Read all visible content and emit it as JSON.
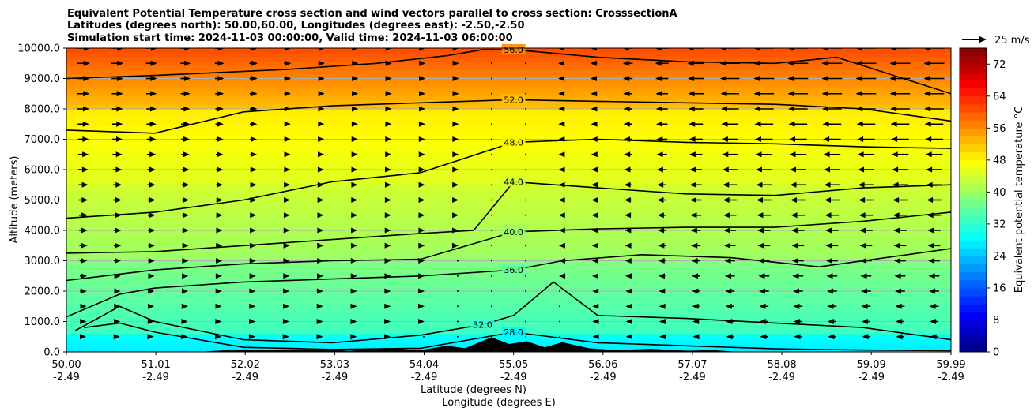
{
  "chart_data": {
    "type": "heatmap",
    "title_lines": [
      "Equivalent Potential Temperature cross section and wind vectors parallel to cross section: CrosssectionA",
      "Latitudes (degrees north): 50.00,60.00, Longitudes (degrees east): -2.50,-2.50",
      "Simulation start time: 2024-11-03 00:00:00, Valid time: 2024-11-03 06:00:00"
    ],
    "ylabel": "Altitude (meters)",
    "xlabel_lines": [
      "Latitude (degrees N)",
      "Longitude (degrees E)"
    ],
    "ylim": [
      0,
      10000
    ],
    "yticks": [
      0,
      1000,
      2000,
      3000,
      4000,
      5000,
      6000,
      7000,
      8000,
      9000,
      10000
    ],
    "ytick_labels": [
      "0.0",
      "1000.0",
      "2000.0",
      "3000.0",
      "4000.0",
      "5000.0",
      "6000.0",
      "7000.0",
      "8000.0",
      "9000.0",
      "10000.0"
    ],
    "xlim": [
      50.0,
      59.99
    ],
    "xticks": [
      {
        "lat": "50.00",
        "lon": "-2.49",
        "v": 50.0
      },
      {
        "lat": "51.01",
        "lon": "-2.49",
        "v": 51.01
      },
      {
        "lat": "52.02",
        "lon": "-2.49",
        "v": 52.02
      },
      {
        "lat": "53.03",
        "lon": "-2.49",
        "v": 53.03
      },
      {
        "lat": "54.04",
        "lon": "-2.49",
        "v": 54.04
      },
      {
        "lat": "55.05",
        "lon": "-2.49",
        "v": 55.05
      },
      {
        "lat": "56.06",
        "lon": "-2.49",
        "v": 56.06
      },
      {
        "lat": "57.07",
        "lon": "-2.49",
        "v": 57.07
      },
      {
        "lat": "58.08",
        "lon": "-2.49",
        "v": 58.08
      },
      {
        "lat": "59.09",
        "lon": "-2.49",
        "v": 59.09
      },
      {
        "lat": "59.99",
        "lon": "-2.49",
        "v": 59.99
      }
    ],
    "colorbar": {
      "label": "Equivalent potential temperature $^\\circ$C",
      "label_display": "Equivalent potential temperature °C",
      "min": 0,
      "max": 76,
      "step": 2,
      "ticks": [
        0,
        8,
        16,
        24,
        32,
        40,
        48,
        56,
        64,
        72
      ],
      "colormap": "jet"
    },
    "quiver_key": {
      "label": "25 m/s",
      "speed": 25
    },
    "filled_levels": [
      {
        "y": [
          0,
          600
        ],
        "theta_start": 27,
        "theta_end": 29
      },
      {
        "y": [
          600,
          3000
        ],
        "theta_start": 33,
        "theta_end": 38
      },
      {
        "y": [
          3000,
          5500
        ],
        "theta_start": 40,
        "theta_end": 44
      },
      {
        "y": [
          5500,
          8000
        ],
        "theta_start": 45,
        "theta_end": 49
      },
      {
        "y": [
          8000,
          10000
        ],
        "theta_start": 52,
        "theta_end": 61
      }
    ],
    "contours": [
      {
        "level": 56,
        "label": "56.0",
        "points": [
          [
            50.0,
            9000
          ],
          [
            51.0,
            9100
          ],
          [
            52.5,
            9300
          ],
          [
            53.5,
            9500
          ],
          [
            54.3,
            9750
          ],
          [
            54.7,
            9950
          ],
          [
            55.05,
            9950
          ],
          [
            56.0,
            9700
          ],
          [
            57.0,
            9550
          ],
          [
            58.0,
            9500
          ],
          [
            58.7,
            9700
          ],
          [
            59.99,
            8500
          ]
        ]
      },
      {
        "level": 52,
        "label": "52.0",
        "points": [
          [
            50.0,
            7300
          ],
          [
            51.0,
            7200
          ],
          [
            52.0,
            7900
          ],
          [
            53.0,
            8100
          ],
          [
            54.0,
            8200
          ],
          [
            55.05,
            8300
          ],
          [
            56.0,
            8250
          ],
          [
            57.0,
            8200
          ],
          [
            58.0,
            8150
          ],
          [
            59.0,
            8000
          ],
          [
            59.99,
            7600
          ]
        ]
      },
      {
        "level": 48,
        "label": "48.0",
        "points": [
          [
            50.0,
            4400
          ],
          [
            51.0,
            4600
          ],
          [
            52.0,
            5000
          ],
          [
            53.0,
            5600
          ],
          [
            54.0,
            5900
          ],
          [
            55.05,
            6900
          ],
          [
            56.0,
            7000
          ],
          [
            57.0,
            6900
          ],
          [
            58.0,
            6850
          ],
          [
            59.0,
            6750
          ],
          [
            59.99,
            6700
          ]
        ]
      },
      {
        "level": 44,
        "label": "44.0",
        "points": [
          [
            50.0,
            3250
          ],
          [
            51.0,
            3300
          ],
          [
            52.0,
            3500
          ],
          [
            53.0,
            3700
          ],
          [
            54.0,
            3900
          ],
          [
            54.6,
            4000
          ],
          [
            55.05,
            5600
          ],
          [
            56.0,
            5400
          ],
          [
            57.0,
            5200
          ],
          [
            58.0,
            5150
          ],
          [
            59.0,
            5400
          ],
          [
            59.99,
            5500
          ]
        ]
      },
      {
        "level": 40,
        "label": "40.0",
        "points": [
          [
            50.0,
            2350
          ],
          [
            51.0,
            2700
          ],
          [
            52.0,
            2900
          ],
          [
            53.0,
            3000
          ],
          [
            54.0,
            3050
          ],
          [
            55.05,
            3950
          ],
          [
            56.0,
            4050
          ],
          [
            57.0,
            4100
          ],
          [
            58.0,
            4100
          ],
          [
            59.0,
            4300
          ],
          [
            59.99,
            4600
          ]
        ]
      },
      {
        "level": 36,
        "label": "36.0",
        "points": [
          [
            50.0,
            1150
          ],
          [
            50.6,
            1900
          ],
          [
            51.0,
            2100
          ],
          [
            52.0,
            2300
          ],
          [
            53.0,
            2400
          ],
          [
            54.0,
            2500
          ],
          [
            55.05,
            2700
          ],
          [
            55.6,
            3000
          ],
          [
            56.5,
            3200
          ],
          [
            57.5,
            3100
          ],
          [
            58.5,
            2800
          ],
          [
            59.99,
            3400
          ]
        ]
      },
      {
        "level": 32,
        "label": "32.0",
        "points": [
          [
            50.1,
            700
          ],
          [
            50.6,
            1500
          ],
          [
            51.0,
            1000
          ],
          [
            51.5,
            700
          ],
          [
            52.0,
            400
          ],
          [
            53.0,
            300
          ],
          [
            54.0,
            550
          ],
          [
            54.7,
            900
          ],
          [
            55.05,
            1200
          ],
          [
            55.5,
            2300
          ],
          [
            56.0,
            1200
          ],
          [
            57.0,
            1100
          ],
          [
            58.0,
            950
          ],
          [
            59.0,
            800
          ],
          [
            59.99,
            400
          ]
        ]
      },
      {
        "level": 28,
        "label": "28.0",
        "points": [
          [
            50.2,
            800
          ],
          [
            50.6,
            950
          ],
          [
            51.0,
            650
          ],
          [
            52.0,
            150
          ],
          [
            53.0,
            80
          ],
          [
            54.0,
            120
          ],
          [
            55.05,
            650
          ],
          [
            56.0,
            300
          ],
          [
            57.0,
            200
          ],
          [
            58.0,
            100
          ],
          [
            59.0,
            60
          ],
          [
            59.99,
            40
          ]
        ]
      }
    ],
    "wind_summary": "Eastward (positive) wind south of about 54.5N turning to westward (negative) wind north of 55N, strongest aloft"
  }
}
